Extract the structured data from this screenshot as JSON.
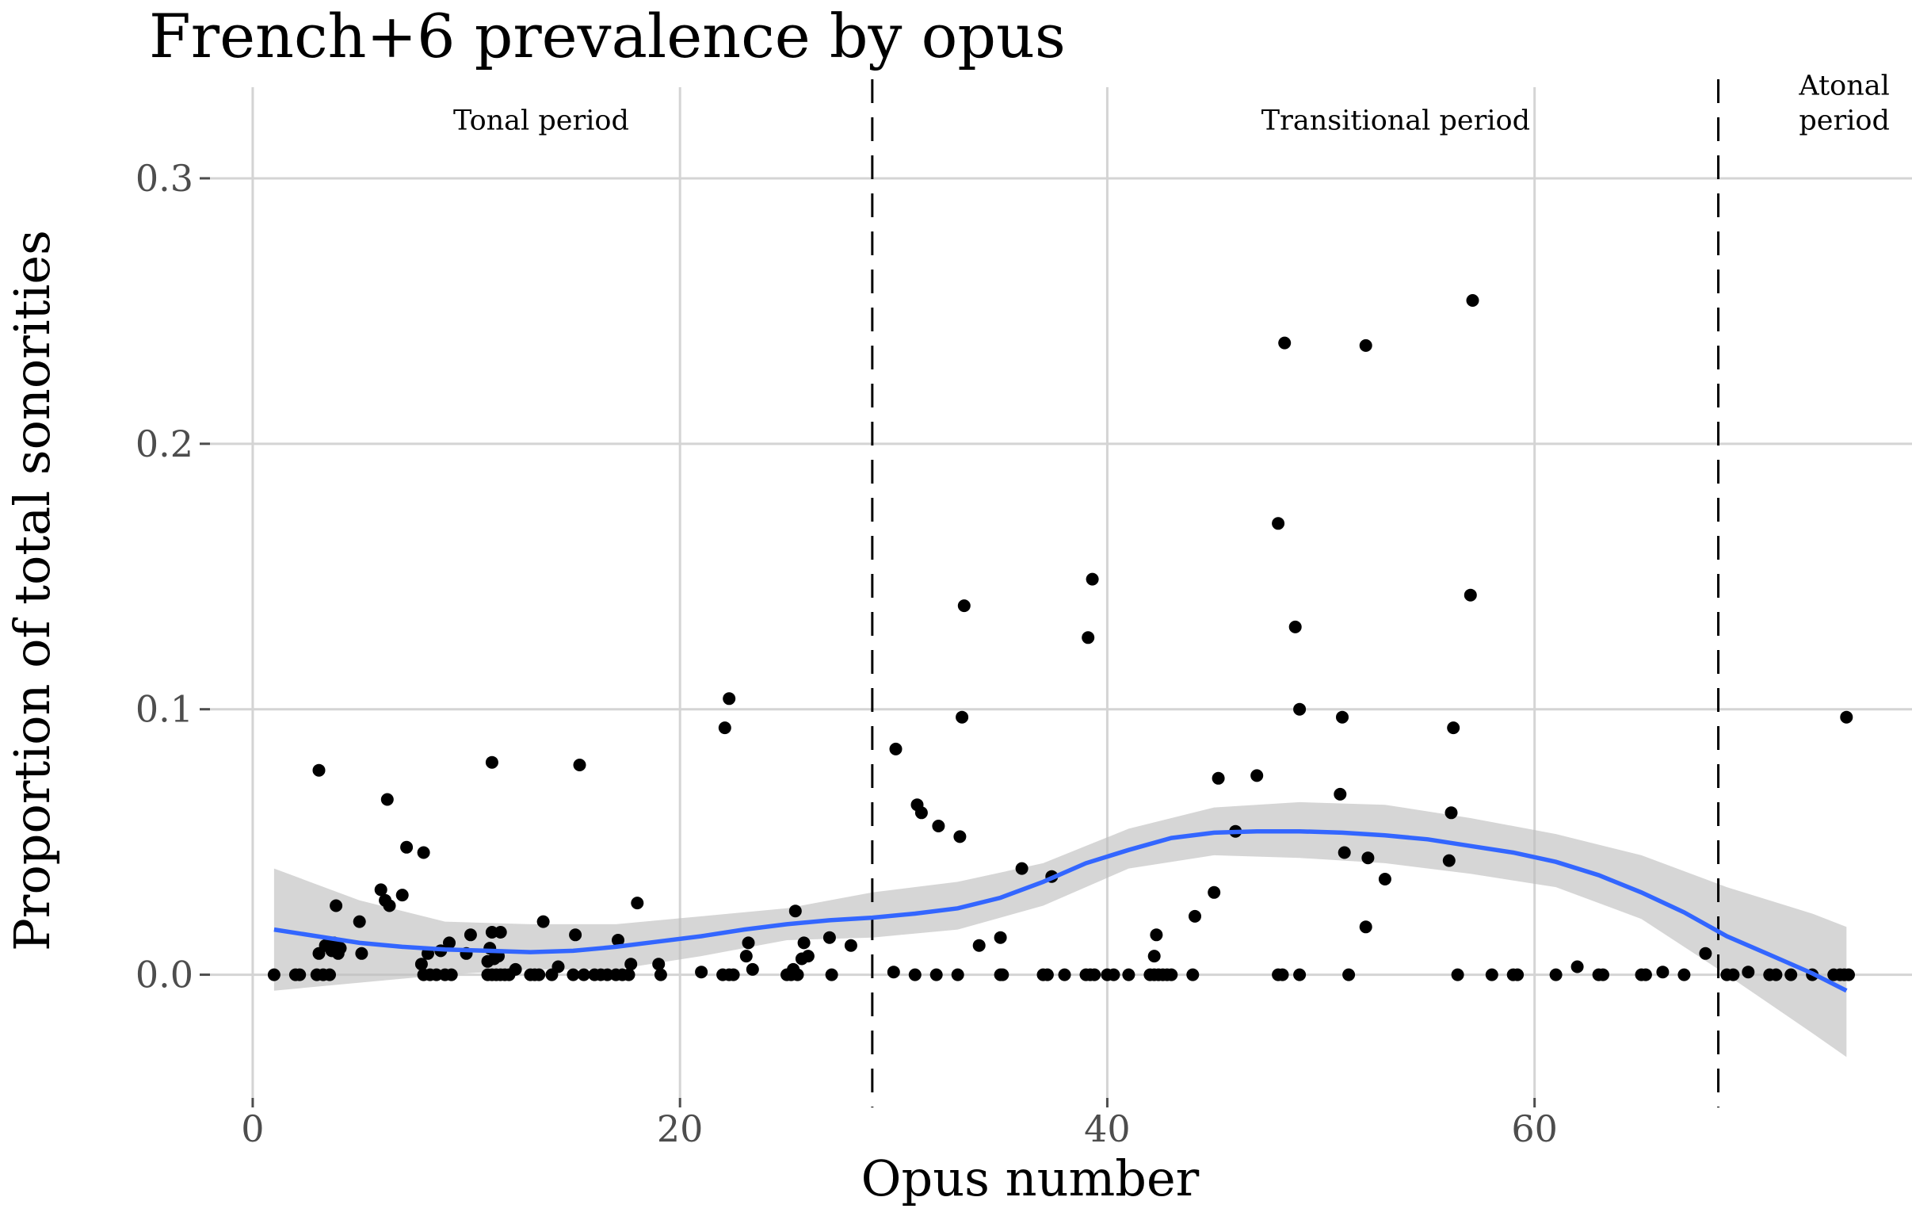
{
  "chart_data": {
    "type": "scatter",
    "title": "French+6 prevalence by opus",
    "xlabel": "Opus number",
    "ylabel": "Proportion of total sonorities",
    "xlim": [
      -2,
      78
    ],
    "ylim": [
      -0.05,
      0.34
    ],
    "x_ticks": [
      {
        "value": 0,
        "label": "0"
      },
      {
        "value": 20,
        "label": "20"
      },
      {
        "value": 40,
        "label": "40"
      },
      {
        "value": 60,
        "label": "60"
      }
    ],
    "y_ticks": [
      {
        "value": 0.0,
        "label": "0.0"
      },
      {
        "value": 0.1,
        "label": "0.1"
      },
      {
        "value": 0.2,
        "label": "0.2"
      },
      {
        "value": 0.3,
        "label": "0.3"
      }
    ],
    "grid": true,
    "period_boundaries": [
      29,
      68.6
    ],
    "annotations": [
      {
        "text": "Tonal period",
        "x": 13.5,
        "y": 0.322
      },
      {
        "text": "Transitional period",
        "x": 53.5,
        "y": 0.322
      },
      {
        "text": "Atonal",
        "x": 74.5,
        "y": 0.335
      },
      {
        "text": "period",
        "x": 74.5,
        "y": 0.322
      }
    ],
    "points": [
      [
        1,
        0
      ],
      [
        2,
        0
      ],
      [
        2.2,
        0
      ],
      [
        3,
        0
      ],
      [
        3.3,
        0
      ],
      [
        3.6,
        0
      ],
      [
        3.1,
        0.008
      ],
      [
        3.4,
        0.011
      ],
      [
        3.7,
        0.009
      ],
      [
        4,
        0.008
      ],
      [
        3.1,
        0.077
      ],
      [
        3.8,
        0.012
      ],
      [
        3.9,
        0.026
      ],
      [
        4.1,
        0.01
      ],
      [
        5,
        0.02
      ],
      [
        5.1,
        0.008
      ],
      [
        6,
        0.032
      ],
      [
        6.2,
        0.028
      ],
      [
        6.4,
        0.026
      ],
      [
        6.3,
        0.066
      ],
      [
        7,
        0.03
      ],
      [
        7.2,
        0.048
      ],
      [
        8,
        0.046
      ],
      [
        7.9,
        0.004
      ],
      [
        8,
        0
      ],
      [
        8.3,
        0
      ],
      [
        8.6,
        0
      ],
      [
        9,
        0
      ],
      [
        9.3,
        0
      ],
      [
        8.2,
        0.008
      ],
      [
        8.8,
        0.009
      ],
      [
        9.2,
        0.012
      ],
      [
        10,
        0.008
      ],
      [
        10.2,
        0.015
      ],
      [
        11,
        0
      ],
      [
        11.2,
        0
      ],
      [
        11.4,
        0
      ],
      [
        11.6,
        0
      ],
      [
        11.8,
        0
      ],
      [
        12,
        0
      ],
      [
        11,
        0.005
      ],
      [
        11.3,
        0.006
      ],
      [
        11.5,
        0.007
      ],
      [
        11.1,
        0.01
      ],
      [
        11.2,
        0.016
      ],
      [
        11.6,
        0.016
      ],
      [
        12.3,
        0.002
      ],
      [
        11.2,
        0.08
      ],
      [
        13,
        0
      ],
      [
        13.2,
        0
      ],
      [
        13.4,
        0
      ],
      [
        13.6,
        0.02
      ],
      [
        14,
        0
      ],
      [
        14.3,
        0.003
      ],
      [
        15,
        0
      ],
      [
        15.1,
        0.015
      ],
      [
        15.5,
        0
      ],
      [
        15.3,
        0.079
      ],
      [
        16,
        0
      ],
      [
        16.3,
        0
      ],
      [
        16.6,
        0
      ],
      [
        17,
        0
      ],
      [
        17.3,
        0
      ],
      [
        17.6,
        0
      ],
      [
        17.1,
        0.013
      ],
      [
        17.7,
        0.004
      ],
      [
        18,
        0.027
      ],
      [
        19,
        0.004
      ],
      [
        19.1,
        0
      ],
      [
        21,
        0.001
      ],
      [
        22,
        0
      ],
      [
        22.3,
        0
      ],
      [
        22.5,
        0
      ],
      [
        22.1,
        0.093
      ],
      [
        22.3,
        0.104
      ],
      [
        23.1,
        0.007
      ],
      [
        23.2,
        0.012
      ],
      [
        23.4,
        0.002
      ],
      [
        25,
        0
      ],
      [
        25.2,
        0
      ],
      [
        25.5,
        0
      ],
      [
        25.3,
        0.002
      ],
      [
        25.4,
        0.024
      ],
      [
        25.7,
        0.006
      ],
      [
        25.8,
        0.012
      ],
      [
        26,
        0.007
      ],
      [
        27,
        0.014
      ],
      [
        27.1,
        0
      ],
      [
        28,
        0.011
      ],
      [
        30,
        0.001
      ],
      [
        30.1,
        0.085
      ],
      [
        31,
        0
      ],
      [
        31.1,
        0.064
      ],
      [
        31.3,
        0.061
      ],
      [
        32,
        0
      ],
      [
        32.1,
        0.056
      ],
      [
        33,
        0
      ],
      [
        33.1,
        0.052
      ],
      [
        33.2,
        0.097
      ],
      [
        33.3,
        0.139
      ],
      [
        34,
        0.011
      ],
      [
        35,
        0
      ],
      [
        35.1,
        0
      ],
      [
        35,
        0.014
      ],
      [
        36,
        0.04
      ],
      [
        37,
        0
      ],
      [
        37.2,
        0
      ],
      [
        37.4,
        0.037
      ],
      [
        38,
        0
      ],
      [
        39,
        0
      ],
      [
        39.2,
        0
      ],
      [
        39.4,
        0
      ],
      [
        39.1,
        0.127
      ],
      [
        39.3,
        0.149
      ],
      [
        40,
        0
      ],
      [
        40.3,
        0
      ],
      [
        41,
        0
      ],
      [
        42,
        0
      ],
      [
        42.2,
        0
      ],
      [
        42.4,
        0
      ],
      [
        42.6,
        0
      ],
      [
        42.8,
        0
      ],
      [
        42.2,
        0.007
      ],
      [
        42.3,
        0.015
      ],
      [
        43,
        0
      ],
      [
        44,
        0
      ],
      [
        44.1,
        0.022
      ],
      [
        45,
        0.031
      ],
      [
        45.2,
        0.074
      ],
      [
        46,
        0.054
      ],
      [
        47,
        0.075
      ],
      [
        48,
        0
      ],
      [
        48.2,
        0
      ],
      [
        48,
        0.17
      ],
      [
        48.3,
        0.238
      ],
      [
        49,
        0
      ],
      [
        48.8,
        0.131
      ],
      [
        49,
        0.1
      ],
      [
        51,
        0.097
      ],
      [
        50.9,
        0.068
      ],
      [
        51.1,
        0.046
      ],
      [
        51.3,
        0
      ],
      [
        52.1,
        0.018
      ],
      [
        52.1,
        0.237
      ],
      [
        52.2,
        0.044
      ],
      [
        53,
        0.036
      ],
      [
        56,
        0.043
      ],
      [
        56.1,
        0.061
      ],
      [
        56.2,
        0.093
      ],
      [
        56.4,
        0
      ],
      [
        57,
        0.143
      ],
      [
        57.1,
        0.254
      ],
      [
        58,
        0
      ],
      [
        59,
        0
      ],
      [
        59.2,
        0
      ],
      [
        61,
        0
      ],
      [
        62,
        0.003
      ],
      [
        63,
        0
      ],
      [
        63.2,
        0
      ],
      [
        65,
        0
      ],
      [
        65.2,
        0
      ],
      [
        66,
        0.001
      ],
      [
        67,
        0
      ],
      [
        68,
        0.008
      ],
      [
        69,
        0
      ],
      [
        69.3,
        0
      ],
      [
        70,
        0.001
      ],
      [
        71,
        0
      ],
      [
        71.3,
        0
      ],
      [
        72,
        0
      ],
      [
        73,
        0
      ],
      [
        74,
        0
      ],
      [
        74.3,
        0
      ],
      [
        74.5,
        0
      ],
      [
        74.7,
        0
      ],
      [
        74.6,
        0.097
      ]
    ],
    "smooth_line": [
      [
        1,
        0.017
      ],
      [
        3,
        0.0145
      ],
      [
        5,
        0.012
      ],
      [
        7,
        0.0105
      ],
      [
        9,
        0.0095
      ],
      [
        11,
        0.009
      ],
      [
        13,
        0.0085
      ],
      [
        15,
        0.009
      ],
      [
        17,
        0.0105
      ],
      [
        19,
        0.0125
      ],
      [
        21,
        0.0145
      ],
      [
        23,
        0.017
      ],
      [
        25,
        0.019
      ],
      [
        27,
        0.0205
      ],
      [
        29,
        0.0215
      ],
      [
        31,
        0.023
      ],
      [
        33,
        0.025
      ],
      [
        35,
        0.029
      ],
      [
        37,
        0.035
      ],
      [
        39,
        0.042
      ],
      [
        41,
        0.047
      ],
      [
        43,
        0.0515
      ],
      [
        45,
        0.0535
      ],
      [
        47,
        0.054
      ],
      [
        49,
        0.054
      ],
      [
        51,
        0.0535
      ],
      [
        53,
        0.0525
      ],
      [
        55,
        0.051
      ],
      [
        57,
        0.0485
      ],
      [
        59,
        0.046
      ],
      [
        61,
        0.0425
      ],
      [
        63,
        0.0375
      ],
      [
        65,
        0.031
      ],
      [
        67,
        0.0235
      ],
      [
        69,
        0.0145
      ],
      [
        71,
        0.0075
      ],
      [
        73,
        0.0005
      ],
      [
        74.6,
        -0.006
      ]
    ],
    "confidence_band": {
      "x": [
        1,
        5,
        9,
        13,
        17,
        21,
        25,
        29,
        33,
        37,
        41,
        45,
        49,
        53,
        57,
        61,
        65,
        69,
        73,
        74.6
      ],
      "upper": [
        0.04,
        0.028,
        0.02,
        0.019,
        0.019,
        0.022,
        0.025,
        0.031,
        0.035,
        0.042,
        0.055,
        0.063,
        0.065,
        0.064,
        0.059,
        0.053,
        0.045,
        0.033,
        0.023,
        0.018
      ],
      "lower": [
        -0.006,
        -0.003,
        0,
        0.002,
        0.002,
        0.007,
        0.013,
        0.014,
        0.017,
        0.026,
        0.04,
        0.045,
        0.044,
        0.042,
        0.038,
        0.033,
        0.021,
        0,
        -0.022,
        -0.031
      ]
    }
  }
}
